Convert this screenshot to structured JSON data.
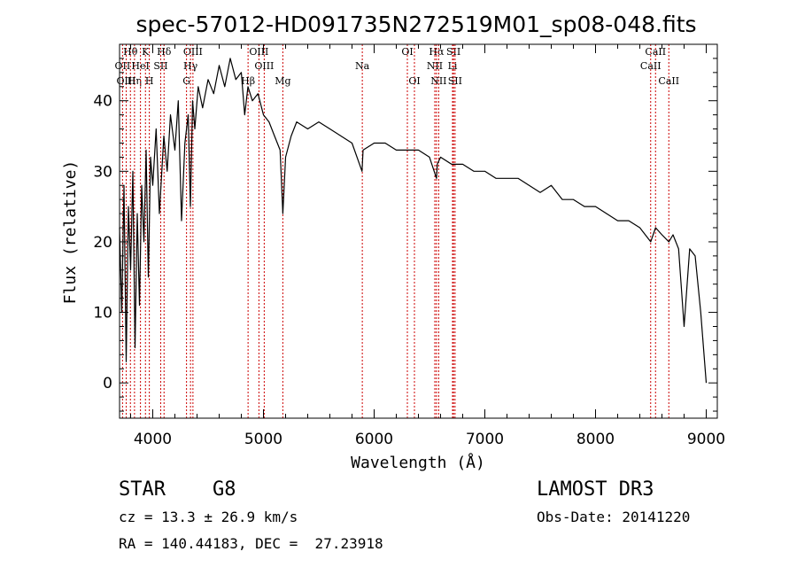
{
  "chart_data": {
    "type": "line",
    "title": "spec-57012-HD091735N272519M01_sp08-048.fits",
    "xlabel": "Wavelength (Å)",
    "ylabel": "Flux (relative)",
    "xlim": [
      3700,
      9100
    ],
    "ylim": [
      -5,
      48
    ],
    "x_ticks": [
      4000,
      5000,
      6000,
      7000,
      8000,
      9000
    ],
    "x_tick_labels": [
      "4000",
      "5000",
      "6000",
      "7000",
      "8000",
      "9000"
    ],
    "y_ticks": [
      0,
      10,
      20,
      30,
      40
    ],
    "y_tick_labels": [
      "0",
      "10",
      "20",
      "30",
      "40"
    ],
    "series": [
      {
        "name": "spectrum",
        "x": [
          3700,
          3720,
          3740,
          3760,
          3780,
          3800,
          3820,
          3840,
          3860,
          3880,
          3900,
          3920,
          3940,
          3960,
          3980,
          4000,
          4030,
          4060,
          4100,
          4130,
          4160,
          4200,
          4230,
          4260,
          4290,
          4320,
          4340,
          4360,
          4380,
          4410,
          4450,
          4500,
          4550,
          4600,
          4650,
          4700,
          4750,
          4800,
          4830,
          4860,
          4900,
          4950,
          5000,
          5050,
          5100,
          5150,
          5175,
          5200,
          5250,
          5300,
          5400,
          5500,
          5600,
          5700,
          5800,
          5890,
          5900,
          6000,
          6100,
          6200,
          6300,
          6400,
          6500,
          6563,
          6570,
          6600,
          6700,
          6800,
          6900,
          7000,
          7100,
          7200,
          7300,
          7400,
          7500,
          7600,
          7700,
          7800,
          7900,
          8000,
          8100,
          8200,
          8300,
          8400,
          8498,
          8542,
          8600,
          8662,
          8700,
          8750,
          8800,
          8850,
          8900,
          8950,
          9000
        ],
        "values": [
          22,
          10,
          28,
          3,
          25,
          16,
          30,
          5,
          24,
          11,
          28,
          20,
          33,
          15,
          32,
          28,
          36,
          24,
          35,
          30,
          38,
          33,
          40,
          23,
          34,
          38,
          25,
          40,
          36,
          42,
          39,
          43,
          41,
          45,
          42,
          46,
          43,
          44,
          38,
          42,
          40,
          41,
          38,
          37,
          35,
          33,
          24,
          32,
          35,
          37,
          36,
          37,
          36,
          35,
          34,
          30,
          33,
          34,
          34,
          33,
          33,
          33,
          32,
          29,
          31,
          32,
          31,
          31,
          30,
          30,
          29,
          29,
          29,
          28,
          27,
          28,
          26,
          26,
          25,
          25,
          24,
          23,
          23,
          22,
          20,
          22,
          21,
          20,
          21,
          19,
          8,
          19,
          18,
          10,
          0
        ]
      }
    ],
    "lines": [
      {
        "name": "Hθ",
        "wave": 3798,
        "row": 1
      },
      {
        "name": "OII",
        "wave": 3727,
        "row": 2
      },
      {
        "name": "OIII",
        "wave": 3760,
        "row": 3
      },
      {
        "name": "Hη",
        "wave": 3835,
        "row": 3
      },
      {
        "name": "HeI",
        "wave": 3889,
        "row": 2
      },
      {
        "name": "K",
        "wave": 3934,
        "row": 1
      },
      {
        "name": "H",
        "wave": 3969,
        "row": 3
      },
      {
        "name": "SII",
        "wave": 4072,
        "row": 2
      },
      {
        "name": "Hδ",
        "wave": 4102,
        "row": 1
      },
      {
        "name": "OIII",
        "wave": 4363,
        "row": 1
      },
      {
        "name": "Hγ",
        "wave": 4341,
        "row": 2
      },
      {
        "name": "G",
        "wave": 4305,
        "row": 3
      },
      {
        "name": "OIII",
        "wave": 4959,
        "row": 1
      },
      {
        "name": "OIII",
        "wave": 5007,
        "row": 2
      },
      {
        "name": "Hβ",
        "wave": 4861,
        "row": 3
      },
      {
        "name": "Mg",
        "wave": 5175,
        "row": 3
      },
      {
        "name": "Na",
        "wave": 5893,
        "row": 2
      },
      {
        "name": "OI",
        "wave": 6300,
        "row": 1
      },
      {
        "name": "OI",
        "wave": 6364,
        "row": 3
      },
      {
        "name": "Hα",
        "wave": 6563,
        "row": 1
      },
      {
        "name": "NII",
        "wave": 6548,
        "row": 2
      },
      {
        "name": "NII",
        "wave": 6583,
        "row": 3
      },
      {
        "name": "SII",
        "wave": 6717,
        "row": 1
      },
      {
        "name": "Li",
        "wave": 6708,
        "row": 2
      },
      {
        "name": "SII",
        "wave": 6731,
        "row": 3
      },
      {
        "name": "CaII",
        "wave": 8542,
        "row": 1
      },
      {
        "name": "CaII",
        "wave": 8498,
        "row": 2
      },
      {
        "name": "CaII",
        "wave": 8662,
        "row": 3
      }
    ],
    "grid": false,
    "line_marker_color": "#cc0000",
    "series_color": "#000000"
  },
  "info": {
    "object_class": "STAR",
    "subclass": "G8",
    "survey": "LAMOST DR3",
    "redshift": "cz = 13.3 ± 26.9 km/s",
    "obs_date": "Obs-Date: 20141220",
    "coords": "RA = 140.44183, DEC =  27.23918"
  }
}
